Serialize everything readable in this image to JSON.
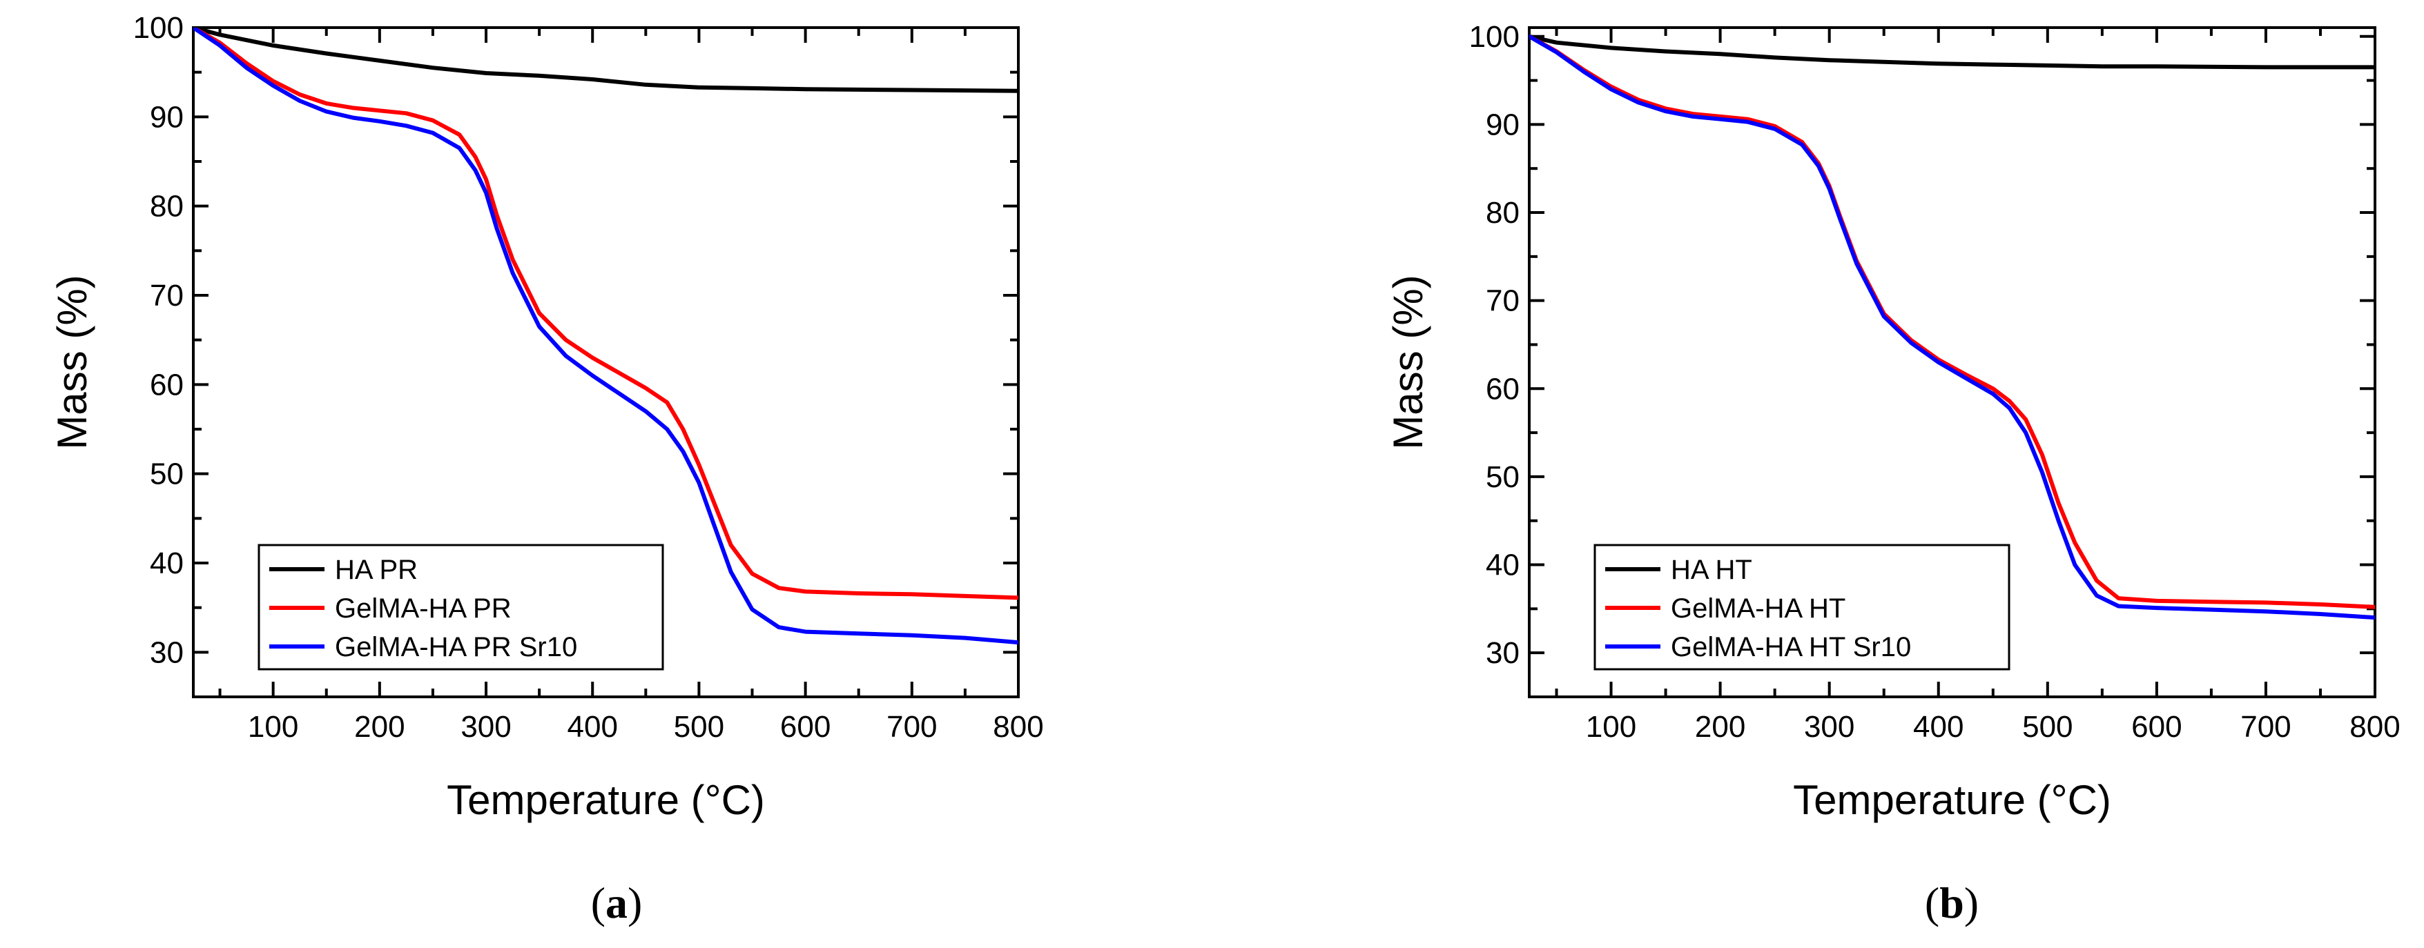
{
  "chart_data": [
    {
      "type": "line",
      "caption": "(a)",
      "caption_letter": "a",
      "xlabel": "Temperature (°C)",
      "ylabel": "Mass (%)",
      "xlim": [
        25,
        800
      ],
      "ylim": [
        25,
        100
      ],
      "xticks": [
        100,
        200,
        300,
        400,
        500,
        600,
        700,
        800
      ],
      "yticks": [
        30,
        40,
        50,
        60,
        70,
        80,
        90,
        100
      ],
      "legend_position": "bottom-left",
      "series": [
        {
          "name": "HA PR",
          "color": "#000000",
          "x": [
            25,
            50,
            100,
            150,
            200,
            250,
            300,
            350,
            400,
            450,
            500,
            550,
            600,
            700,
            800
          ],
          "y": [
            100,
            99.2,
            98.0,
            97.1,
            96.3,
            95.5,
            94.9,
            94.6,
            94.2,
            93.6,
            93.3,
            93.2,
            93.1,
            93.0,
            92.9
          ]
        },
        {
          "name": "GelMA-HA PR",
          "color": "#ff0000",
          "x": [
            25,
            50,
            75,
            100,
            125,
            150,
            175,
            200,
            225,
            250,
            275,
            290,
            300,
            310,
            325,
            350,
            375,
            400,
            425,
            450,
            470,
            485,
            500,
            515,
            530,
            550,
            575,
            600,
            650,
            700,
            750,
            800
          ],
          "y": [
            100,
            98.3,
            96.0,
            94.0,
            92.5,
            91.5,
            91.0,
            90.7,
            90.4,
            89.6,
            88.0,
            85.5,
            83.0,
            79.0,
            74.0,
            68.0,
            65.0,
            63.0,
            61.3,
            59.6,
            58.0,
            55.0,
            51.0,
            46.5,
            42.0,
            38.8,
            37.2,
            36.8,
            36.6,
            36.5,
            36.3,
            36.1
          ]
        },
        {
          "name": "GelMA-HA PR Sr10",
          "color": "#0000ff",
          "x": [
            25,
            50,
            75,
            100,
            125,
            150,
            175,
            200,
            225,
            250,
            275,
            290,
            300,
            310,
            325,
            350,
            375,
            400,
            425,
            450,
            470,
            485,
            500,
            515,
            530,
            550,
            575,
            600,
            650,
            700,
            750,
            800
          ],
          "y": [
            100,
            98.0,
            95.5,
            93.5,
            91.8,
            90.6,
            89.9,
            89.5,
            89.0,
            88.2,
            86.5,
            84.0,
            81.5,
            77.5,
            72.5,
            66.5,
            63.2,
            61.0,
            59.0,
            57.0,
            55.0,
            52.5,
            49.0,
            44.0,
            39.0,
            34.8,
            32.8,
            32.3,
            32.1,
            31.9,
            31.6,
            31.1
          ]
        }
      ]
    },
    {
      "type": "line",
      "caption": "(b)",
      "caption_letter": "b",
      "xlabel": "Temperature (°C)",
      "ylabel": "Mass (%)",
      "xlim": [
        25,
        800
      ],
      "ylim": [
        25,
        101
      ],
      "xticks": [
        100,
        200,
        300,
        400,
        500,
        600,
        700,
        800
      ],
      "yticks": [
        30,
        40,
        50,
        60,
        70,
        80,
        90,
        100
      ],
      "legend_position": "bottom-left",
      "series": [
        {
          "name": "HA HT",
          "color": "#000000",
          "x": [
            25,
            50,
            100,
            150,
            200,
            250,
            300,
            350,
            400,
            450,
            500,
            550,
            600,
            700,
            800
          ],
          "y": [
            100,
            99.3,
            98.7,
            98.3,
            98.0,
            97.6,
            97.3,
            97.1,
            96.9,
            96.8,
            96.7,
            96.6,
            96.6,
            96.5,
            96.5
          ]
        },
        {
          "name": "GelMA-HA HT",
          "color": "#ff0000",
          "x": [
            25,
            50,
            75,
            100,
            125,
            150,
            175,
            200,
            225,
            250,
            275,
            290,
            300,
            310,
            325,
            350,
            375,
            400,
            425,
            450,
            465,
            480,
            495,
            510,
            525,
            545,
            565,
            600,
            650,
            700,
            750,
            800
          ],
          "y": [
            100,
            98.3,
            96.2,
            94.3,
            92.8,
            91.8,
            91.2,
            90.9,
            90.6,
            89.8,
            88.0,
            85.6,
            83.0,
            79.5,
            74.5,
            68.5,
            65.5,
            63.3,
            61.6,
            60.0,
            58.6,
            56.5,
            52.5,
            47.0,
            42.5,
            38.2,
            36.2,
            35.9,
            35.8,
            35.7,
            35.5,
            35.2
          ]
        },
        {
          "name": "GelMA-HA HT Sr10",
          "color": "#0000ff",
          "x": [
            25,
            50,
            75,
            100,
            125,
            150,
            175,
            200,
            225,
            250,
            275,
            290,
            300,
            310,
            325,
            350,
            375,
            400,
            425,
            450,
            465,
            480,
            495,
            510,
            525,
            545,
            565,
            600,
            650,
            700,
            750,
            800
          ],
          "y": [
            100,
            98.2,
            96.0,
            94.0,
            92.5,
            91.5,
            90.9,
            90.6,
            90.3,
            89.5,
            87.7,
            85.3,
            82.7,
            79.2,
            74.2,
            68.2,
            65.2,
            63.0,
            61.2,
            59.4,
            57.8,
            55.0,
            50.5,
            45.0,
            40.0,
            36.5,
            35.3,
            35.1,
            34.9,
            34.7,
            34.4,
            34.0
          ]
        }
      ]
    }
  ]
}
